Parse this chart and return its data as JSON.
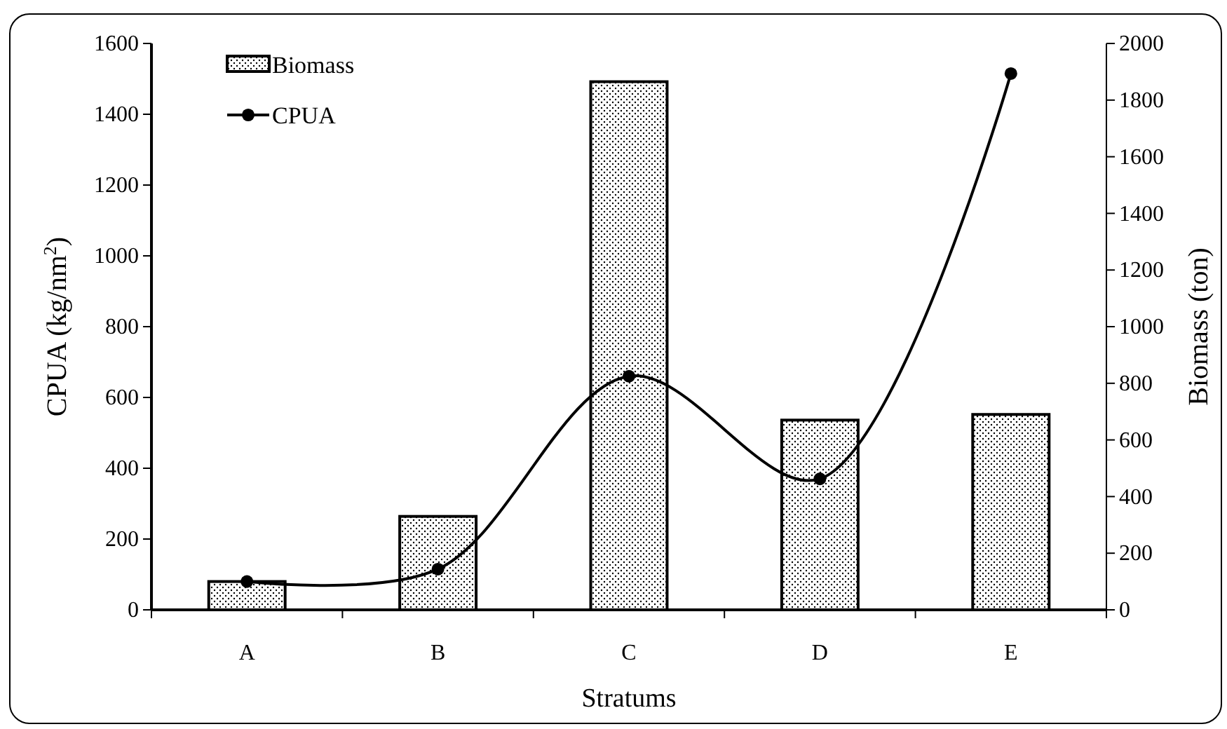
{
  "chart_data": {
    "type": "bar",
    "xlabel": "Stratums",
    "ylabel": "CPUA (kg/nm$^{2}$)",
    "y2label": "Biomass (ton)",
    "categories": [
      "A",
      "B",
      "C",
      "D",
      "E"
    ],
    "series": [
      {
        "name": "Biomass",
        "axis": "y2",
        "color": "#000000",
        "values": [
          100,
          330,
          1865,
          670,
          690
        ]
      },
      {
        "name": "CPUA",
        "type": "line",
        "color": "#000000",
        "marker": "circle",
        "values": [
          80,
          115,
          660,
          370,
          1515
        ]
      }
    ],
    "ylim": [
      0,
      1600
    ],
    "yticks": [
      0,
      200,
      400,
      600,
      800,
      1000,
      1200,
      1400,
      1600
    ],
    "y2lim": [
      0,
      2000
    ],
    "y2ticks": [
      0,
      200,
      400,
      600,
      800,
      1000,
      1200,
      1400,
      1600,
      1800,
      2000
    ],
    "legend": "top left"
  }
}
